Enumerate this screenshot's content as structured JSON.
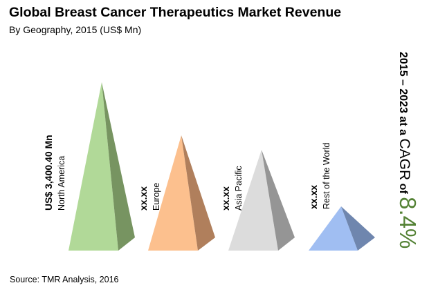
{
  "chart_data": {
    "type": "bar",
    "mark": "pyramid",
    "title": "Global Breast Cancer Therapeutics Market Revenue",
    "subtitle": "By Geography, 2015 (US$ Mn)",
    "categories": [
      "North America",
      "Europe",
      "Asia Pacific",
      "Rest of the World"
    ],
    "value_labels": [
      "US$ 3,400.40 Mn",
      "xx.xx",
      "xx.xx",
      "xx.xx"
    ],
    "values": [
      3400.4,
      null,
      null,
      null
    ],
    "colors": [
      {
        "front": "#b1d998",
        "side": "#779461"
      },
      {
        "front": "#fcc08e",
        "side": "#b07f5c"
      },
      {
        "front": "#dcdcdc",
        "side": "#959595"
      },
      {
        "front": "#a0bef2",
        "side": "#6f86ae"
      }
    ],
    "annotation": {
      "prefix": "2015 – 2023 at a ",
      "cagr": "CAGR",
      "of": " of ",
      "value": "8.4%",
      "value_color": "#548235"
    },
    "source": "Source: TMR Analysis, 2016"
  }
}
